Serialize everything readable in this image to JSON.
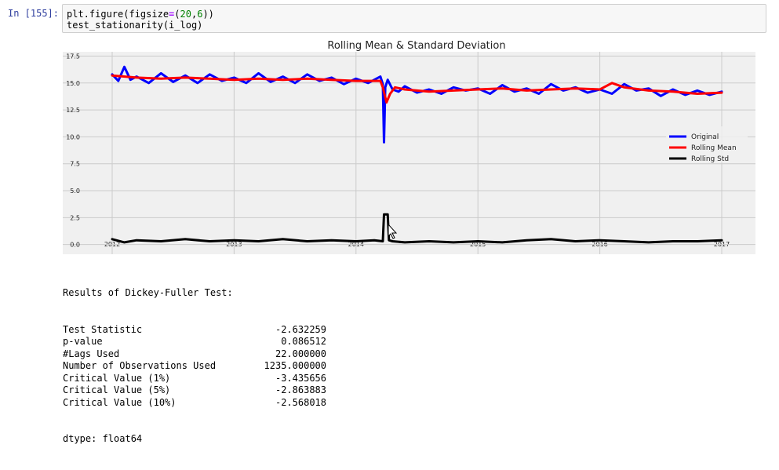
{
  "cell": {
    "prompt": "In [155]:",
    "code_lines": [
      {
        "parts": [
          {
            "t": "plt.figure(figsize",
            "c": ""
          },
          {
            "t": "=",
            "c": "op"
          },
          {
            "t": "(",
            "c": ""
          },
          {
            "t": "20",
            "c": "num"
          },
          {
            "t": ",",
            "c": ""
          },
          {
            "t": "6",
            "c": "num"
          },
          {
            "t": "))",
            "c": ""
          }
        ]
      },
      {
        "parts": [
          {
            "t": "test_stationarity(i_log)",
            "c": ""
          }
        ]
      }
    ]
  },
  "chart_data": {
    "type": "line",
    "title": "Rolling Mean & Standard Deviation",
    "xlabel": "",
    "ylabel": "",
    "x_ticks": [
      "2012",
      "2013",
      "2014",
      "2015",
      "2016",
      "2017"
    ],
    "y_ticks": [
      "0.0",
      "2.5",
      "5.0",
      "7.5",
      "10.0",
      "12.5",
      "15.0",
      "17.5"
    ],
    "xlim": [
      2012.0,
      2017.0
    ],
    "ylim": [
      -0.9,
      17.9
    ],
    "grid": true,
    "legend_position": "center-right",
    "series": [
      {
        "name": "Original",
        "color": "#0000ff",
        "points": [
          [
            2012.0,
            15.8
          ],
          [
            2012.05,
            15.2
          ],
          [
            2012.1,
            16.5
          ],
          [
            2012.15,
            15.3
          ],
          [
            2012.2,
            15.6
          ],
          [
            2012.3,
            15.0
          ],
          [
            2012.4,
            15.9
          ],
          [
            2012.5,
            15.1
          ],
          [
            2012.6,
            15.7
          ],
          [
            2012.7,
            15.0
          ],
          [
            2012.8,
            15.8
          ],
          [
            2012.9,
            15.2
          ],
          [
            2013.0,
            15.5
          ],
          [
            2013.1,
            15.0
          ],
          [
            2013.2,
            15.9
          ],
          [
            2013.3,
            15.1
          ],
          [
            2013.4,
            15.6
          ],
          [
            2013.5,
            15.0
          ],
          [
            2013.6,
            15.8
          ],
          [
            2013.7,
            15.2
          ],
          [
            2013.8,
            15.5
          ],
          [
            2013.9,
            14.9
          ],
          [
            2014.0,
            15.4
          ],
          [
            2014.1,
            15.0
          ],
          [
            2014.2,
            15.6
          ],
          [
            2014.22,
            14.9
          ],
          [
            2014.23,
            9.5
          ],
          [
            2014.24,
            14.6
          ],
          [
            2014.26,
            15.3
          ],
          [
            2014.3,
            14.4
          ],
          [
            2014.35,
            14.2
          ],
          [
            2014.4,
            14.7
          ],
          [
            2014.5,
            14.1
          ],
          [
            2014.6,
            14.4
          ],
          [
            2014.7,
            14.0
          ],
          [
            2014.8,
            14.6
          ],
          [
            2014.9,
            14.3
          ],
          [
            2015.0,
            14.5
          ],
          [
            2015.1,
            14.0
          ],
          [
            2015.2,
            14.8
          ],
          [
            2015.3,
            14.2
          ],
          [
            2015.4,
            14.5
          ],
          [
            2015.5,
            14.0
          ],
          [
            2015.6,
            14.9
          ],
          [
            2015.7,
            14.3
          ],
          [
            2015.8,
            14.6
          ],
          [
            2015.9,
            14.1
          ],
          [
            2016.0,
            14.4
          ],
          [
            2016.1,
            14.0
          ],
          [
            2016.2,
            14.9
          ],
          [
            2016.3,
            14.3
          ],
          [
            2016.4,
            14.5
          ],
          [
            2016.5,
            13.8
          ],
          [
            2016.6,
            14.4
          ],
          [
            2016.7,
            13.9
          ],
          [
            2016.8,
            14.3
          ],
          [
            2016.9,
            13.9
          ],
          [
            2017.0,
            14.2
          ]
        ]
      },
      {
        "name": "Rolling Mean",
        "color": "#ff0000",
        "points": [
          [
            2012.0,
            15.7
          ],
          [
            2012.2,
            15.5
          ],
          [
            2012.4,
            15.4
          ],
          [
            2012.6,
            15.5
          ],
          [
            2012.8,
            15.4
          ],
          [
            2013.0,
            15.3
          ],
          [
            2013.2,
            15.4
          ],
          [
            2013.4,
            15.3
          ],
          [
            2013.6,
            15.4
          ],
          [
            2013.8,
            15.3
          ],
          [
            2014.0,
            15.2
          ],
          [
            2014.2,
            15.2
          ],
          [
            2014.22,
            14.6
          ],
          [
            2014.25,
            13.2
          ],
          [
            2014.28,
            14.0
          ],
          [
            2014.32,
            14.6
          ],
          [
            2014.4,
            14.4
          ],
          [
            2014.6,
            14.2
          ],
          [
            2014.8,
            14.3
          ],
          [
            2015.0,
            14.4
          ],
          [
            2015.2,
            14.5
          ],
          [
            2015.4,
            14.3
          ],
          [
            2015.6,
            14.4
          ],
          [
            2015.8,
            14.5
          ],
          [
            2016.0,
            14.4
          ],
          [
            2016.1,
            15.0
          ],
          [
            2016.2,
            14.6
          ],
          [
            2016.4,
            14.3
          ],
          [
            2016.6,
            14.2
          ],
          [
            2016.8,
            14.0
          ],
          [
            2017.0,
            14.1
          ]
        ]
      },
      {
        "name": "Rolling Std",
        "color": "#000000",
        "points": [
          [
            2012.0,
            0.5
          ],
          [
            2012.1,
            0.2
          ],
          [
            2012.2,
            0.4
          ],
          [
            2012.4,
            0.3
          ],
          [
            2012.6,
            0.5
          ],
          [
            2012.8,
            0.3
          ],
          [
            2013.0,
            0.4
          ],
          [
            2013.2,
            0.3
          ],
          [
            2013.4,
            0.5
          ],
          [
            2013.6,
            0.3
          ],
          [
            2013.8,
            0.4
          ],
          [
            2014.0,
            0.3
          ],
          [
            2014.15,
            0.4
          ],
          [
            2014.22,
            0.3
          ],
          [
            2014.23,
            2.8
          ],
          [
            2014.26,
            2.8
          ],
          [
            2014.27,
            0.4
          ],
          [
            2014.3,
            0.3
          ],
          [
            2014.4,
            0.2
          ],
          [
            2014.6,
            0.3
          ],
          [
            2014.8,
            0.2
          ],
          [
            2015.0,
            0.3
          ],
          [
            2015.2,
            0.2
          ],
          [
            2015.4,
            0.4
          ],
          [
            2015.6,
            0.5
          ],
          [
            2015.8,
            0.3
          ],
          [
            2016.0,
            0.4
          ],
          [
            2016.2,
            0.3
          ],
          [
            2016.4,
            0.2
          ],
          [
            2016.6,
            0.3
          ],
          [
            2016.8,
            0.3
          ],
          [
            2017.0,
            0.4
          ]
        ]
      }
    ]
  },
  "stats": {
    "header": "Results of Dickey-Fuller Test:",
    "rows": [
      {
        "label": "Test Statistic",
        "value": "-2.632259"
      },
      {
        "label": "p-value",
        "value": "0.086512"
      },
      {
        "label": "#Lags Used",
        "value": "22.000000"
      },
      {
        "label": "Number of Observations Used",
        "value": "1235.000000"
      },
      {
        "label": "Critical Value (1%)",
        "value": "-3.435656"
      },
      {
        "label": "Critical Value (5%)",
        "value": "-2.863883"
      },
      {
        "label": "Critical Value (10%)",
        "value": "-2.568018"
      }
    ],
    "footer": "dtype: float64"
  },
  "colors": {
    "prompt": "#303f9f",
    "plot_bg": "#f0f0f0",
    "grid": "#cbcbcb"
  }
}
